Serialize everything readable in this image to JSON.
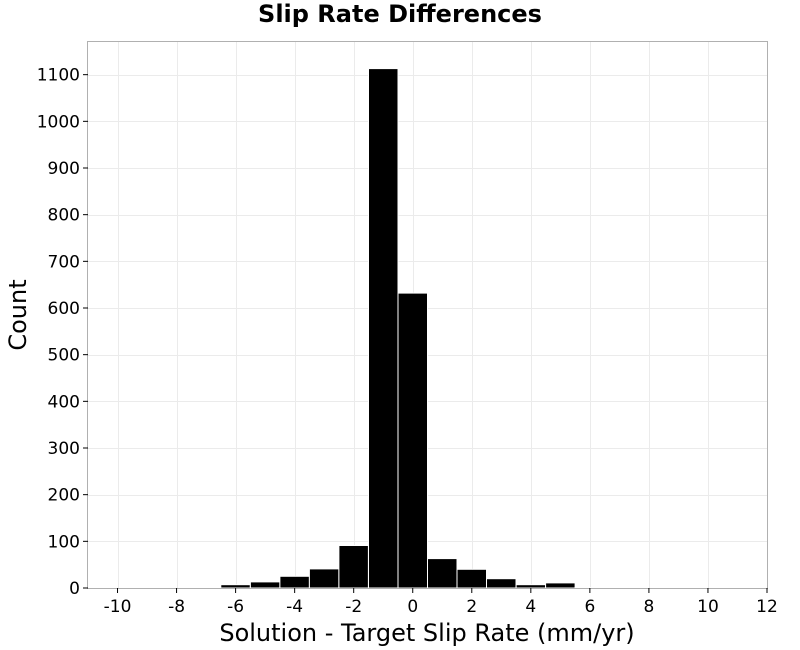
{
  "chart_data": {
    "type": "bar",
    "title": "Slip Rate Differences",
    "xlabel": "Solution - Target Slip Rate (mm/yr)",
    "ylabel": "Count",
    "xlim": [
      -11,
      12
    ],
    "ylim": [
      0,
      1170
    ],
    "bin_width": 1,
    "x_ticks": [
      -10,
      -8,
      -6,
      -4,
      -2,
      0,
      2,
      4,
      6,
      8,
      10,
      12
    ],
    "x_tick_labels": [
      "-10",
      "-8",
      "-6",
      "-4",
      "-2",
      "0",
      "2",
      "4",
      "6",
      "8",
      "10",
      "12"
    ],
    "y_ticks": [
      0,
      100,
      200,
      300,
      400,
      500,
      600,
      700,
      800,
      900,
      1000,
      1100
    ],
    "y_tick_labels": [
      "0",
      "100",
      "200",
      "300",
      "400",
      "500",
      "600",
      "700",
      "800",
      "900",
      "1000",
      "1100"
    ],
    "grid": true,
    "bars": [
      {
        "x": -7,
        "value": 1
      },
      {
        "x": -6,
        "value": 7
      },
      {
        "x": -5,
        "value": 13
      },
      {
        "x": -4,
        "value": 25
      },
      {
        "x": -3,
        "value": 41
      },
      {
        "x": -2,
        "value": 91
      },
      {
        "x": -1,
        "value": 1113
      },
      {
        "x": 0,
        "value": 632
      },
      {
        "x": 1,
        "value": 63
      },
      {
        "x": 2,
        "value": 40
      },
      {
        "x": 3,
        "value": 20
      },
      {
        "x": 4,
        "value": 7
      },
      {
        "x": 5,
        "value": 11
      },
      {
        "x": 6,
        "value": 1
      }
    ],
    "colors": {
      "bar": "#000000",
      "bar_edge": "#ffffff",
      "grid": "#ebebeb",
      "frame": "#b0b0b0"
    }
  }
}
